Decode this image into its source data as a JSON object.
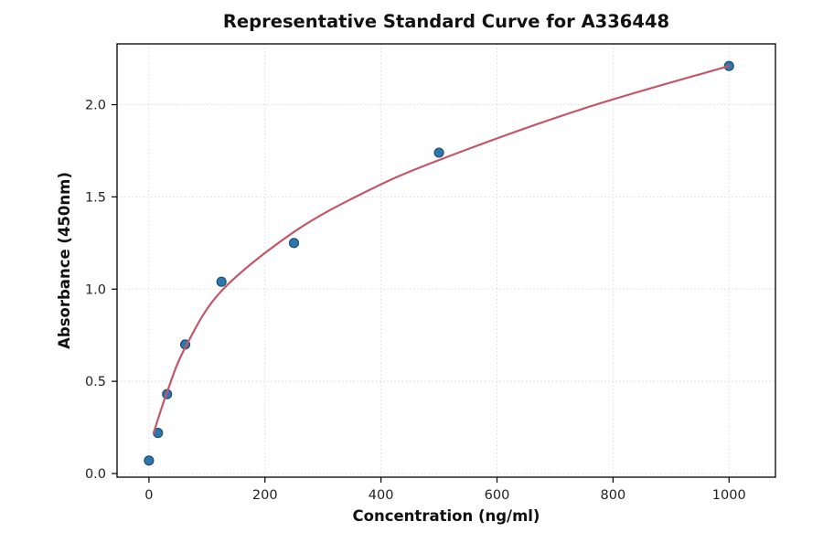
{
  "figure": {
    "background_color": "#ffffff",
    "border_color": "#000000"
  },
  "chart_data": {
    "type": "scatter",
    "title": "Representative Standard Curve for A336448",
    "xlabel": "Concentration (ng/ml)",
    "ylabel": "Absorbance (450nm)",
    "xlim": [
      -55,
      1080
    ],
    "ylim": [
      -0.02,
      2.33
    ],
    "grid": true,
    "grid_color": "#d8d8d8",
    "legend_position": "none",
    "x_ticks": [
      0,
      200,
      400,
      600,
      800,
      1000
    ],
    "x_tick_labels": [
      "0",
      "200",
      "400",
      "600",
      "800",
      "1000"
    ],
    "y_ticks": [
      0.0,
      0.5,
      1.0,
      1.5,
      2.0
    ],
    "y_tick_labels": [
      "0.0",
      "0.5",
      "1.0",
      "1.5",
      "2.0"
    ],
    "series": [
      {
        "name": "standard-points",
        "kind": "scatter",
        "x": [
          0,
          15.6,
          31.25,
          62.5,
          125,
          250,
          500,
          1000
        ],
        "y": [
          0.07,
          0.22,
          0.43,
          0.7,
          1.04,
          1.25,
          1.74,
          2.21
        ],
        "marker_color": "#2e77ae",
        "marker_edge_color": "#1a4a6e",
        "marker_radius": 5
      },
      {
        "name": "fit-curve",
        "kind": "line",
        "x": [
          8,
          31,
          62,
          125,
          250,
          375,
          500,
          750,
          1000
        ],
        "y": [
          0.22,
          0.44,
          0.68,
          0.99,
          1.31,
          1.53,
          1.7,
          1.98,
          2.21
        ],
        "color": "#c4566a",
        "width": 2.2
      }
    ]
  }
}
